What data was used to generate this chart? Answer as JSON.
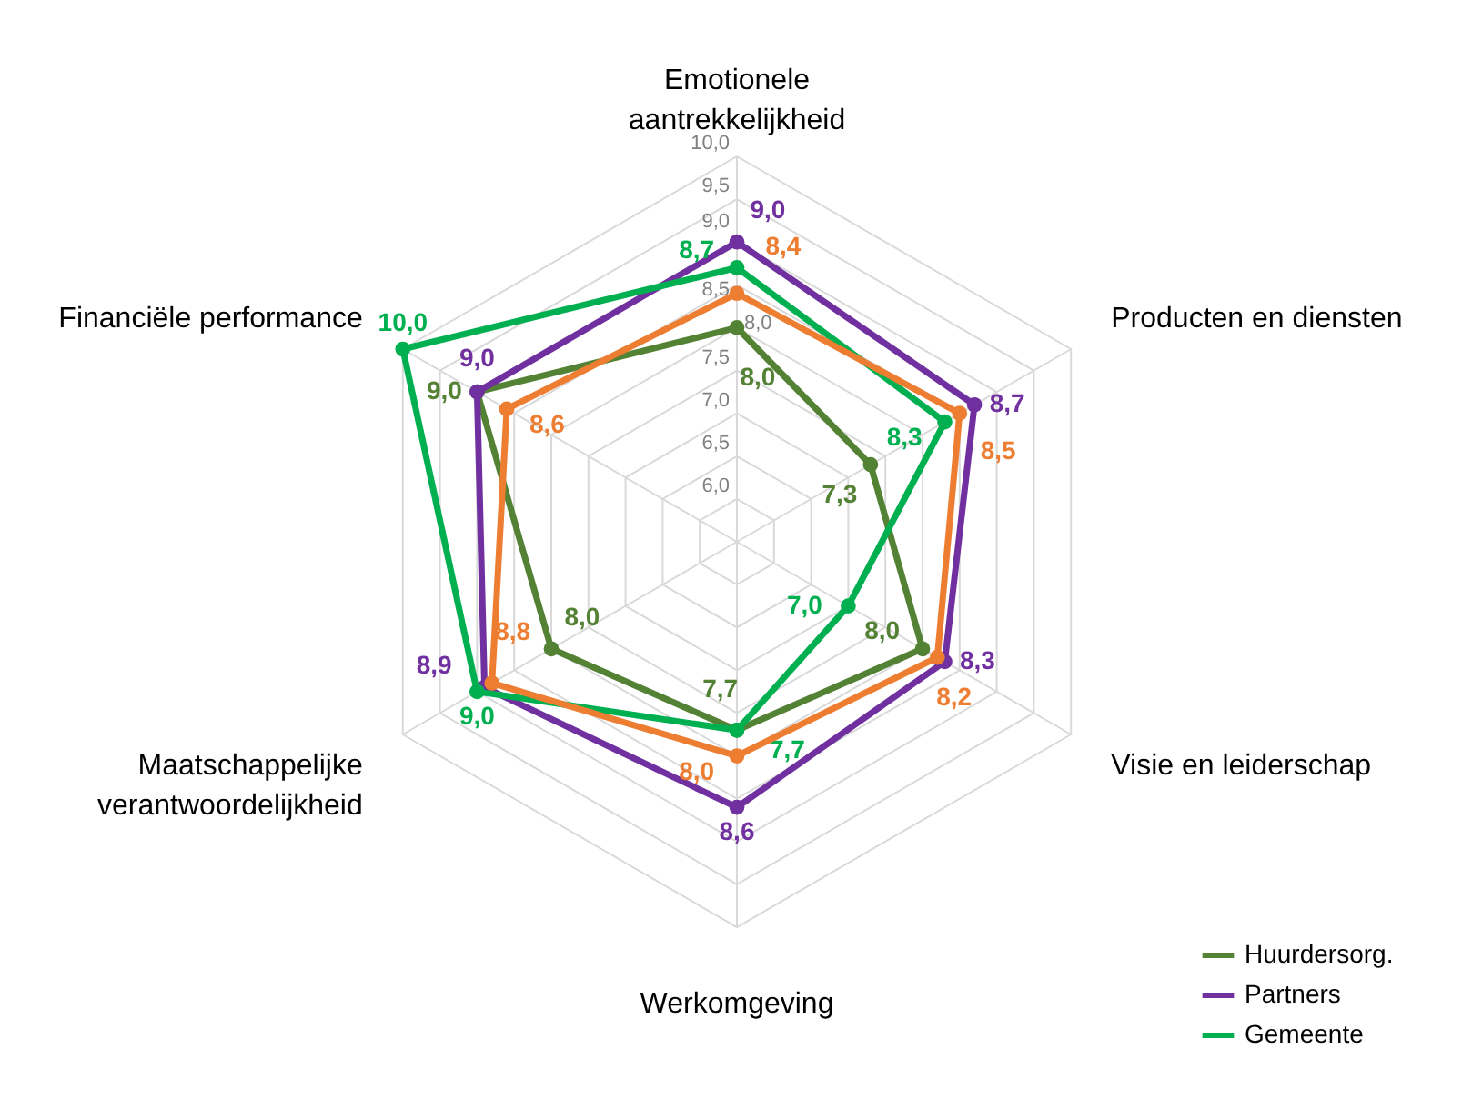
{
  "chart_data": {
    "type": "radar",
    "categories": [
      "Emotionele\naantrekkelijkheid",
      "Producten en diensten",
      "Visie en leiderschap",
      "Werkomgeving",
      "Maatschappelijke\nverantwoordelijkheid",
      "Financiële performance"
    ],
    "ylim": [
      5.5,
      10
    ],
    "yticks": [
      {
        "value": 6,
        "label": "6,0"
      },
      {
        "value": 6.5,
        "label": "6,5"
      },
      {
        "value": 7,
        "label": "7,0"
      },
      {
        "value": 7.5,
        "label": "7,5"
      },
      {
        "value": 8,
        "label": "8,0"
      },
      {
        "value": 8.5,
        "label": "8,5"
      },
      {
        "value": 9,
        "label": "9,0"
      },
      {
        "value": 9.5,
        "label": "9,5"
      },
      {
        "value": 10,
        "label": "10,0"
      }
    ],
    "grid": true,
    "legend": "bottom right",
    "marker": "circle",
    "line_style": "solid",
    "series": [
      {
        "name": "Huurdersorg.",
        "color": "#548235",
        "values": [
          8.0,
          7.3,
          8.0,
          7.7,
          8.0,
          9.0
        ],
        "value_labels": [
          "8,0",
          "7,3",
          "8,0",
          "7,7",
          "8,0",
          "9,0"
        ]
      },
      {
        "name": "Partners",
        "color": "#7030a0",
        "values": [
          9.0,
          8.7,
          8.3,
          8.6,
          8.9,
          9.0
        ],
        "value_labels": [
          "9,0",
          "8,7",
          "8,3",
          "8,6",
          "8,9",
          "9,0"
        ]
      },
      {
        "name": "Gemeente",
        "color": "#00b050",
        "values": [
          8.7,
          8.3,
          7.0,
          7.7,
          9.0,
          10.0
        ],
        "value_labels": [
          "8,7",
          "8,3",
          "7,0",
          "7,7",
          "9,0",
          "10,0"
        ]
      },
      {
        "color": "#ed7d31",
        "values": [
          8.4,
          8.5,
          8.2,
          8.0,
          8.8,
          8.6
        ],
        "value_labels": [
          "8,4",
          "8,5",
          "8,2",
          "8,0",
          "8,8",
          "8,6"
        ]
      }
    ]
  }
}
